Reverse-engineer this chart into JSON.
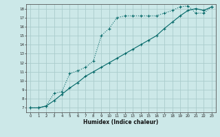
{
  "xlabel": "Humidex (Indice chaleur)",
  "background_color": "#cce8e8",
  "grid_color": "#aacccc",
  "line_color": "#006666",
  "xlim": [
    -0.5,
    23.5
  ],
  "ylim": [
    6.5,
    18.5
  ],
  "xticks": [
    0,
    1,
    2,
    3,
    4,
    5,
    6,
    7,
    8,
    9,
    10,
    11,
    12,
    13,
    14,
    15,
    16,
    17,
    18,
    19,
    20,
    21,
    22,
    23
  ],
  "yticks": [
    7,
    8,
    9,
    10,
    11,
    12,
    13,
    14,
    15,
    16,
    17,
    18
  ],
  "series1_x": [
    0,
    1,
    2,
    3,
    4,
    5,
    6,
    7,
    8,
    9,
    10,
    11,
    12,
    13,
    14,
    15,
    16,
    17,
    18,
    19,
    20,
    21,
    22,
    23
  ],
  "series1_y": [
    7.0,
    7.0,
    7.2,
    8.6,
    8.8,
    10.8,
    11.1,
    11.5,
    12.2,
    15.0,
    15.8,
    17.0,
    17.2,
    17.2,
    17.2,
    17.2,
    17.2,
    17.5,
    17.8,
    18.2,
    18.3,
    17.5,
    17.5,
    18.2
  ],
  "series2_x": [
    0,
    1,
    2,
    3,
    4,
    5,
    6,
    7,
    8,
    9,
    10,
    11,
    12,
    13,
    14,
    15,
    16,
    17,
    18,
    19,
    20,
    21,
    22,
    23
  ],
  "series2_y": [
    7.0,
    7.0,
    7.2,
    7.8,
    8.5,
    9.2,
    9.8,
    10.5,
    11.0,
    11.5,
    12.0,
    12.5,
    13.0,
    13.5,
    14.0,
    14.5,
    15.0,
    15.8,
    16.5,
    17.2,
    17.8,
    18.0,
    17.8,
    18.2
  ]
}
